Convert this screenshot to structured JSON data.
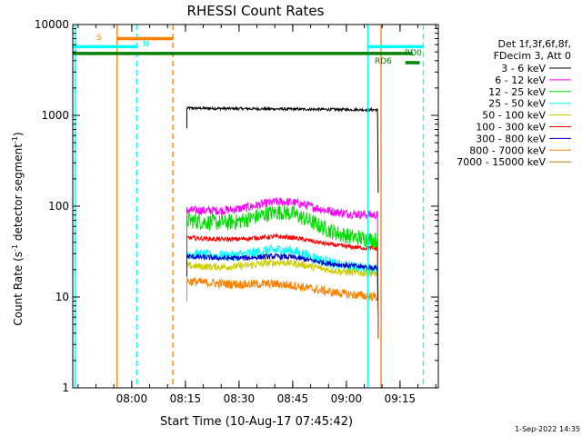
{
  "chart_data": {
    "type": "line",
    "title": "RHESSI Count Rates",
    "xlabel": "Start Time (10-Aug-17 07:45:42)",
    "ylabel_main": "Count Rate (s",
    "ylabel_sup": "-1",
    "ylabel_tail": " detector segment",
    "ylabel_sup2": "-1",
    "ylabel_end": ")",
    "yscale": "log",
    "ylim": [
      1,
      10000
    ],
    "xlim_minutes": [
      -2.2,
      100
    ],
    "x_ticks": [
      {
        "label": "08:00",
        "min": 14.3
      },
      {
        "label": "08:15",
        "min": 29.3
      },
      {
        "label": "08:30",
        "min": 44.3
      },
      {
        "label": "08:45",
        "min": 59.3
      },
      {
        "label": "09:00",
        "min": 74.3
      },
      {
        "label": "09:15",
        "min": 89.3
      }
    ],
    "y_ticks": [
      {
        "label": "1",
        "value": 1
      },
      {
        "label": "10",
        "value": 10
      },
      {
        "label": "100",
        "value": 100
      },
      {
        "label": "1000",
        "value": 1000
      },
      {
        "label": "10000",
        "value": 10000
      }
    ],
    "legend": {
      "header": [
        "Det 1f,3f,6f,8f,",
        "FDecim 3, Att 0"
      ],
      "placement": "right"
    },
    "series": [
      {
        "name": "3 - 6 keV",
        "color": "#000000",
        "level_start": 1200,
        "level_end": 1150,
        "bump": 0.0,
        "noise": 0.015
      },
      {
        "name": "6 - 12 keV",
        "color": "#ff00ff",
        "level_start": 90,
        "level_end": 80,
        "bump": 0.12,
        "noise": 0.05
      },
      {
        "name": "12 - 25 keV",
        "color": "#00dd00",
        "level_start": 70,
        "level_end": 42,
        "bump": 0.2,
        "noise": 0.09
      },
      {
        "name": "25 - 50 keV",
        "color": "#00ffff",
        "level_start": 30,
        "level_end": 20,
        "bump": 0.13,
        "noise": 0.06
      },
      {
        "name": "50 - 100 keV",
        "color": "#cccc00",
        "level_start": 22,
        "level_end": 18,
        "bump": 0.08,
        "noise": 0.04
      },
      {
        "name": "100 - 300 keV",
        "color": "#ff0000",
        "level_start": 45,
        "level_end": 34,
        "bump": 0.07,
        "noise": 0.025
      },
      {
        "name": "300 - 800 keV",
        "color": "#0000cc",
        "level_start": 28,
        "level_end": 21,
        "bump": 0.06,
        "noise": 0.03
      },
      {
        "name": "800 - 7000 keV",
        "color": "#ff8000",
        "level_start": 15,
        "level_end": 10,
        "bump": 0.05,
        "noise": 0.05
      },
      {
        "name": "7000 - 15000 keV",
        "color": "#b8860b",
        "level_start": 0,
        "level_end": 0,
        "bump": 0.0,
        "noise": 0.0
      }
    ],
    "data_start_min": 29.7,
    "data_end_min": 83.0,
    "bump_center_min": 57.0,
    "annotations": {
      "s_label": "S",
      "n_label": "N",
      "rd0_label": "RD0",
      "rd6_label": "RD6"
    },
    "markers": {
      "cyan_solid_min": [
        -1.5,
        80.3
      ],
      "cyan_dashed_min": [
        15.7,
        95.8
      ],
      "orange_solid_min": [
        10.2,
        84.0
      ],
      "orange_dashed_min": [
        25.8
      ]
    },
    "flags": {
      "saa_cyan": {
        "color": "#00ffff",
        "y": 5700,
        "segments": [
          [
            -2.2,
            15.7
          ],
          [
            80.3,
            95.8
          ]
        ]
      },
      "saa_orange": {
        "color": "#ff8000",
        "y": 7000,
        "segments": [
          [
            10.2,
            25.8
          ]
        ]
      },
      "green_main": {
        "color": "#008000",
        "y": 4800,
        "segments": [
          [
            -2.2,
            92.8
          ]
        ]
      },
      "green_rd6": {
        "color": "#008000",
        "y": 3800,
        "segments": [
          [
            90.8,
            94.8
          ]
        ]
      }
    },
    "timestamp": "1-Sep-2022 14:35"
  }
}
